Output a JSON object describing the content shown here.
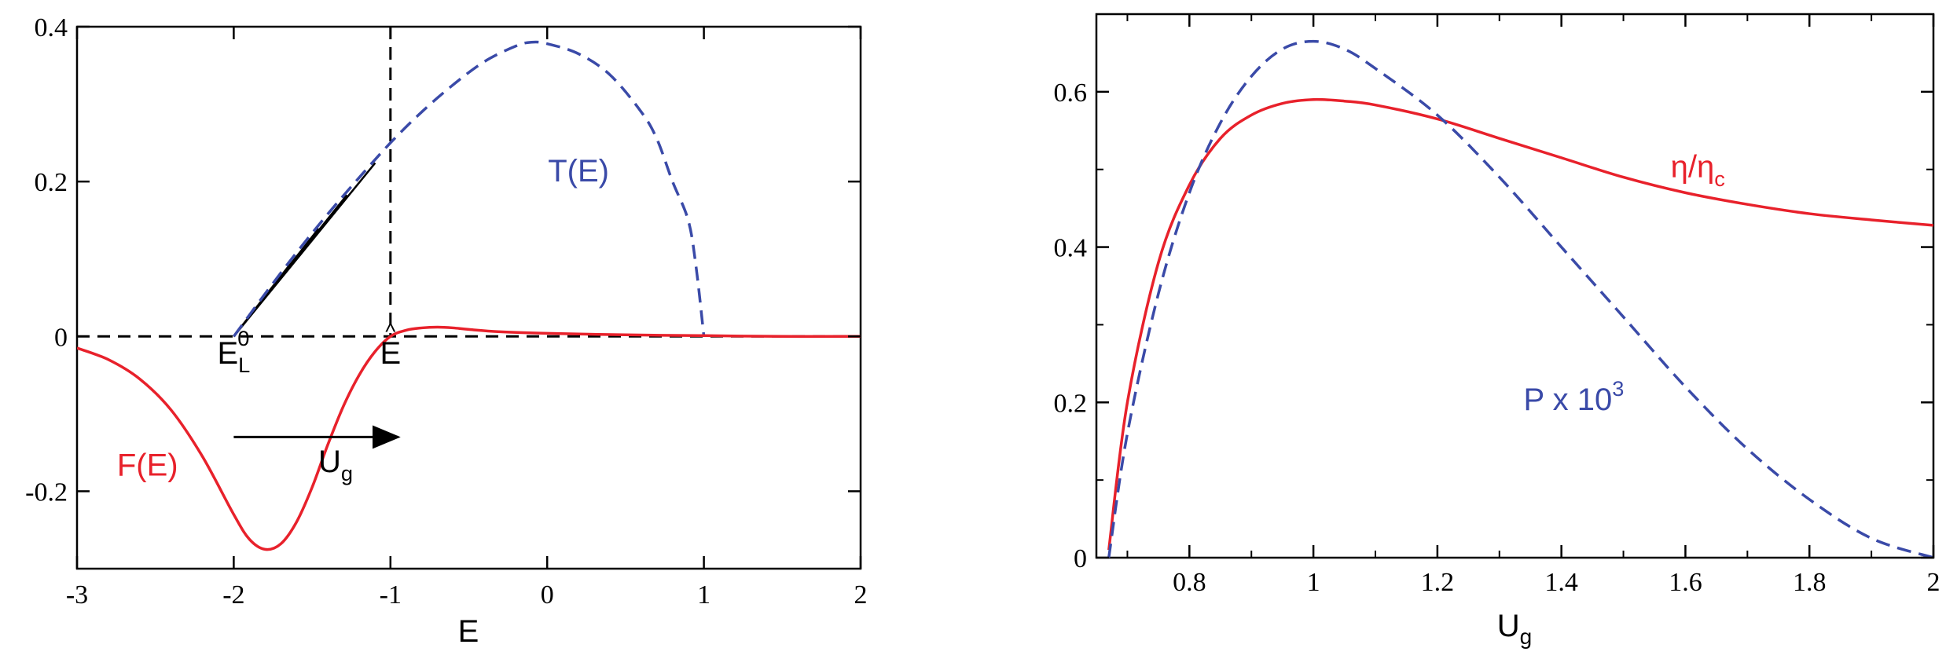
{
  "chart_data": [
    {
      "type": "line",
      "title": "",
      "xlabel": "E",
      "ylabel": "",
      "xlim": [
        -3,
        2
      ],
      "ylim": [
        -0.3,
        0.4
      ],
      "grid": false,
      "x_ticks": [
        -3,
        -2,
        -1,
        0,
        1,
        2
      ],
      "x_tick_labels": [
        "-3",
        "-2",
        "-1",
        "0",
        "1",
        "2"
      ],
      "y_ticks": [
        -0.2,
        0,
        0.2,
        0.4
      ],
      "y_tick_labels": [
        "-0.2",
        "0",
        "0.2",
        "0.4"
      ],
      "series": [
        {
          "name": "T(E)",
          "style": "dashed",
          "color": "#3a4aa8",
          "x": [
            -2.0,
            -1.8,
            -1.6,
            -1.4,
            -1.2,
            -1.0,
            -0.8,
            -0.6,
            -0.4,
            -0.2,
            -0.1,
            0.0,
            0.2,
            0.4,
            0.6,
            0.7,
            0.8,
            0.9,
            0.95,
            1.0
          ],
          "y": [
            0.0,
            0.055,
            0.108,
            0.158,
            0.205,
            0.25,
            0.29,
            0.325,
            0.355,
            0.375,
            0.38,
            0.378,
            0.365,
            0.338,
            0.29,
            0.255,
            0.2,
            0.15,
            0.09,
            0.0
          ]
        },
        {
          "name": "F(E)",
          "style": "solid",
          "color": "#e8212b",
          "x": [
            -3.0,
            -2.8,
            -2.6,
            -2.4,
            -2.2,
            -2.0,
            -1.9,
            -1.8,
            -1.7,
            -1.6,
            -1.5,
            -1.4,
            -1.3,
            -1.2,
            -1.1,
            -1.0,
            -0.9,
            -0.8,
            -0.7,
            -0.6,
            -0.5,
            -0.3,
            0.0,
            0.5,
            1.0,
            1.5,
            2.0
          ],
          "y": [
            -0.015,
            -0.03,
            -0.055,
            -0.095,
            -0.155,
            -0.23,
            -0.262,
            -0.275,
            -0.268,
            -0.24,
            -0.195,
            -0.14,
            -0.09,
            -0.05,
            -0.02,
            0.0,
            0.008,
            0.011,
            0.012,
            0.011,
            0.009,
            0.006,
            0.004,
            0.002,
            0.001,
            0.0,
            0.0
          ]
        }
      ],
      "reference_lines": [
        {
          "orientation": "horizontal",
          "value": 0,
          "style": "dashed",
          "color": "#000000"
        },
        {
          "orientation": "vertical",
          "value": -1,
          "style": "dashed",
          "color": "#000000"
        }
      ],
      "shaded_region": {
        "x_from": -2,
        "x_to": -1,
        "pattern": "diagonal-hatch",
        "bounded_by": "T(E)"
      },
      "annotations": [
        {
          "text": "T(E)",
          "color": "#3a4aa8",
          "x": 0.2,
          "y": 0.2
        },
        {
          "text": "F(E)",
          "color": "#e8212b",
          "x": -2.55,
          "y": -0.18
        },
        {
          "base": "E",
          "sub": "L",
          "sup": "0",
          "color": "#000000",
          "x": -2.0,
          "y": -0.035
        },
        {
          "base": "E",
          "accent": "^",
          "color": "#000000",
          "x": -1.0,
          "y": -0.035
        },
        {
          "base": "U",
          "sub": "g",
          "color": "#000000",
          "x": -1.35,
          "y": -0.175
        },
        {
          "arrow": true,
          "x_from": -2.0,
          "x_to": -0.95,
          "y": -0.13,
          "color": "#000000"
        }
      ]
    },
    {
      "type": "line",
      "title": "",
      "xlabel": "U",
      "xlabel_sub": "g",
      "ylabel": "",
      "xlim": [
        0.65,
        2.0
      ],
      "ylim": [
        0,
        0.7
      ],
      "grid": false,
      "x_ticks": [
        0.8,
        1.0,
        1.2,
        1.4,
        1.6,
        1.8,
        2.0
      ],
      "x_tick_labels": [
        "0.8",
        "1",
        "1.2",
        "1.4",
        "1.6",
        "1.8",
        "2"
      ],
      "y_ticks": [
        0,
        0.2,
        0.4,
        0.6
      ],
      "y_tick_labels": [
        "0",
        "0.2",
        "0.4",
        "0.6"
      ],
      "series": [
        {
          "name": "η/η_c",
          "style": "solid",
          "color": "#e8212b",
          "x": [
            0.67,
            0.7,
            0.75,
            0.8,
            0.85,
            0.9,
            0.95,
            1.0,
            1.05,
            1.1,
            1.2,
            1.3,
            1.4,
            1.5,
            1.6,
            1.7,
            1.8,
            1.9,
            2.0
          ],
          "y": [
            0.01,
            0.2,
            0.38,
            0.48,
            0.54,
            0.57,
            0.585,
            0.59,
            0.588,
            0.583,
            0.565,
            0.54,
            0.515,
            0.49,
            0.47,
            0.455,
            0.443,
            0.435,
            0.428
          ]
        },
        {
          "name": "P x 10^3",
          "style": "dashed",
          "color": "#3a4aa8",
          "x": [
            0.67,
            0.7,
            0.75,
            0.8,
            0.85,
            0.9,
            0.95,
            1.0,
            1.05,
            1.1,
            1.2,
            1.3,
            1.4,
            1.5,
            1.6,
            1.7,
            1.8,
            1.9,
            2.0
          ],
          "y": [
            0.0,
            0.16,
            0.34,
            0.47,
            0.56,
            0.62,
            0.655,
            0.665,
            0.655,
            0.63,
            0.57,
            0.49,
            0.4,
            0.31,
            0.22,
            0.14,
            0.075,
            0.025,
            0.0
          ]
        }
      ],
      "annotations": [
        {
          "base": "η/η",
          "sub": "c",
          "color": "#e8212b",
          "x": 1.62,
          "y": 0.49
        },
        {
          "base": "P x 10",
          "sup": "3",
          "color": "#3a4aa8",
          "x": 1.42,
          "y": 0.19
        }
      ]
    }
  ]
}
